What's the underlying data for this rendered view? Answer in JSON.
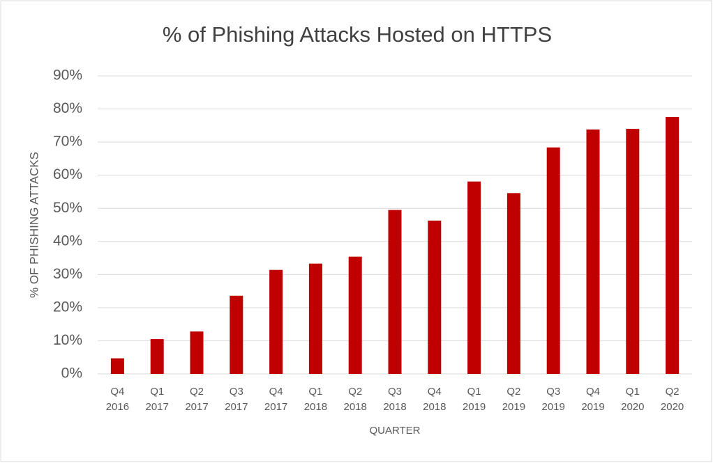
{
  "chart_data": {
    "type": "bar",
    "title": "% of Phishing Attacks Hosted on HTTPS",
    "x_label": "QUARTER",
    "y_label": "% OF PHISHING ATTACKS",
    "categories": [
      [
        "Q4",
        "2016"
      ],
      [
        "Q1",
        "2017"
      ],
      [
        "Q2",
        "2017"
      ],
      [
        "Q3",
        "2017"
      ],
      [
        "Q4",
        "2017"
      ],
      [
        "Q1",
        "2018"
      ],
      [
        "Q2",
        "2018"
      ],
      [
        "Q3",
        "2018"
      ],
      [
        "Q4",
        "2018"
      ],
      [
        "Q1",
        "2019"
      ],
      [
        "Q2",
        "2019"
      ],
      [
        "Q3",
        "2019"
      ],
      [
        "Q4",
        "2019"
      ],
      [
        "Q1",
        "2020"
      ],
      [
        "Q2",
        "2020"
      ]
    ],
    "values": [
      4.7,
      10.5,
      12.8,
      23.6,
      31.4,
      33.3,
      35.4,
      49.5,
      46.3,
      58.1,
      54.6,
      68.4,
      73.8,
      74,
      77.6
    ],
    "color": "#c00000",
    "ylim": [
      0,
      90
    ],
    "yticks": [
      {
        "value": 0,
        "label": "0%"
      },
      {
        "value": 10,
        "label": "10%"
      },
      {
        "value": 20,
        "label": "20%"
      },
      {
        "value": 30,
        "label": "30%"
      },
      {
        "value": 40,
        "label": "40%"
      },
      {
        "value": 50,
        "label": "50%"
      },
      {
        "value": 60,
        "label": "60%"
      },
      {
        "value": 70,
        "label": "70%"
      },
      {
        "value": 80,
        "label": "80%"
      },
      {
        "value": 90,
        "label": "90%"
      }
    ],
    "grid": true
  }
}
